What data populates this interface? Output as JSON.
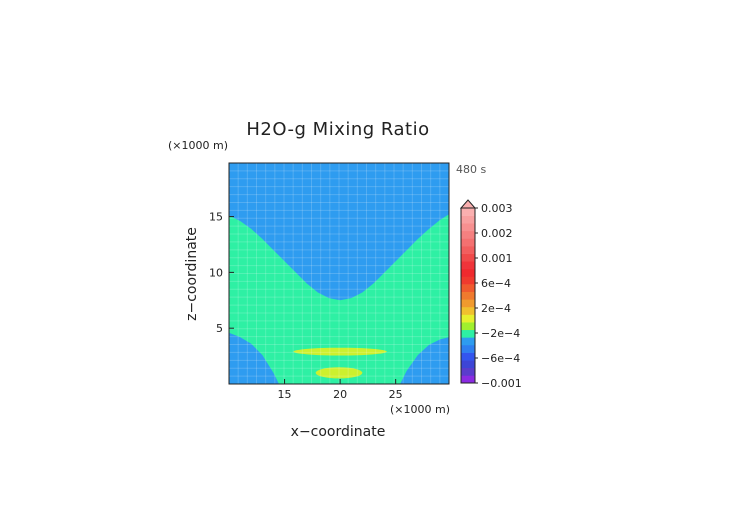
{
  "chart_data": {
    "type": "contour",
    "title": "H2O-g Mixing Ratio",
    "time_label": "480 s",
    "xlabel": "x−coordinate",
    "ylabel": "z−coordinate",
    "x_unit": "(×1000 m)",
    "y_unit": "(×1000 m)",
    "xlim": [
      10,
      29.8
    ],
    "ylim": [
      0,
      19.8
    ],
    "x_ticks": [
      15,
      20,
      25
    ],
    "y_ticks": [
      5,
      10,
      15
    ],
    "regions": [
      {
        "name": "upper",
        "value_band": "-2e-4 to 0",
        "color": "#2e9cf0"
      },
      {
        "name": "middle",
        "value_band": "0 to 2e-4",
        "color": "#2ef0a4"
      },
      {
        "name": "lower-corners",
        "value_band": "-2e-4 to 0",
        "color": "#2e9cf0"
      },
      {
        "name": "upper-blob",
        "value_band": "2e-4 to 4e-4",
        "color": "#cdf02e",
        "center": [
          20,
          2.9
        ],
        "half_width": [
          4.2,
          0.35
        ]
      },
      {
        "name": "lower-blob",
        "value_band": "2e-4 to 4e-4",
        "color": "#cdf02e",
        "center": [
          19.9,
          1.0
        ],
        "half_width": [
          2.1,
          0.5
        ]
      }
    ],
    "upper_boundary": [
      [
        10,
        15.1
      ],
      [
        11,
        14.6
      ],
      [
        12,
        13.9
      ],
      [
        13,
        13.0
      ],
      [
        14,
        12.0
      ],
      [
        15,
        11.0
      ],
      [
        16,
        10.0
      ],
      [
        17,
        9.0
      ],
      [
        18,
        8.2
      ],
      [
        19,
        7.7
      ],
      [
        20,
        7.5
      ],
      [
        21,
        7.7
      ],
      [
        22,
        8.2
      ],
      [
        23,
        9.0
      ],
      [
        24,
        10.0
      ],
      [
        25,
        11.0
      ],
      [
        26,
        12.0
      ],
      [
        27,
        13.0
      ],
      [
        28,
        13.9
      ],
      [
        29,
        14.7
      ],
      [
        29.8,
        15.2
      ]
    ],
    "lower_boundary": [
      [
        10,
        4.6
      ],
      [
        11,
        4.2
      ],
      [
        12,
        3.6
      ],
      [
        13,
        2.6
      ],
      [
        14,
        1.0
      ],
      [
        14.5,
        0
      ],
      [
        25.4,
        0
      ],
      [
        26,
        1.2
      ],
      [
        27,
        2.6
      ],
      [
        28,
        3.5
      ],
      [
        29,
        4.0
      ],
      [
        29.8,
        4.2
      ]
    ],
    "colorbar": {
      "tick_labels": [
        "0.003",
        "0.002",
        "0.001",
        "6e−4",
        "2e−4",
        "−2e−4",
        "−6e−4",
        "−0.001"
      ],
      "colors": [
        "#8a2be2",
        "#5a3ccc",
        "#3d45d6",
        "#3355ee",
        "#2e7ff0",
        "#2e9cf0",
        "#2ef0a4",
        "#a0f02e",
        "#e6f02e",
        "#f0c02e",
        "#f09a2e",
        "#f07a2e",
        "#f05a2e",
        "#f03a2e",
        "#f02a2e",
        "#f0343a",
        "#f04a4a",
        "#f25e5e",
        "#f47070",
        "#f58080",
        "#f79090",
        "#f8a0a0",
        "#faafaf"
      ]
    }
  }
}
